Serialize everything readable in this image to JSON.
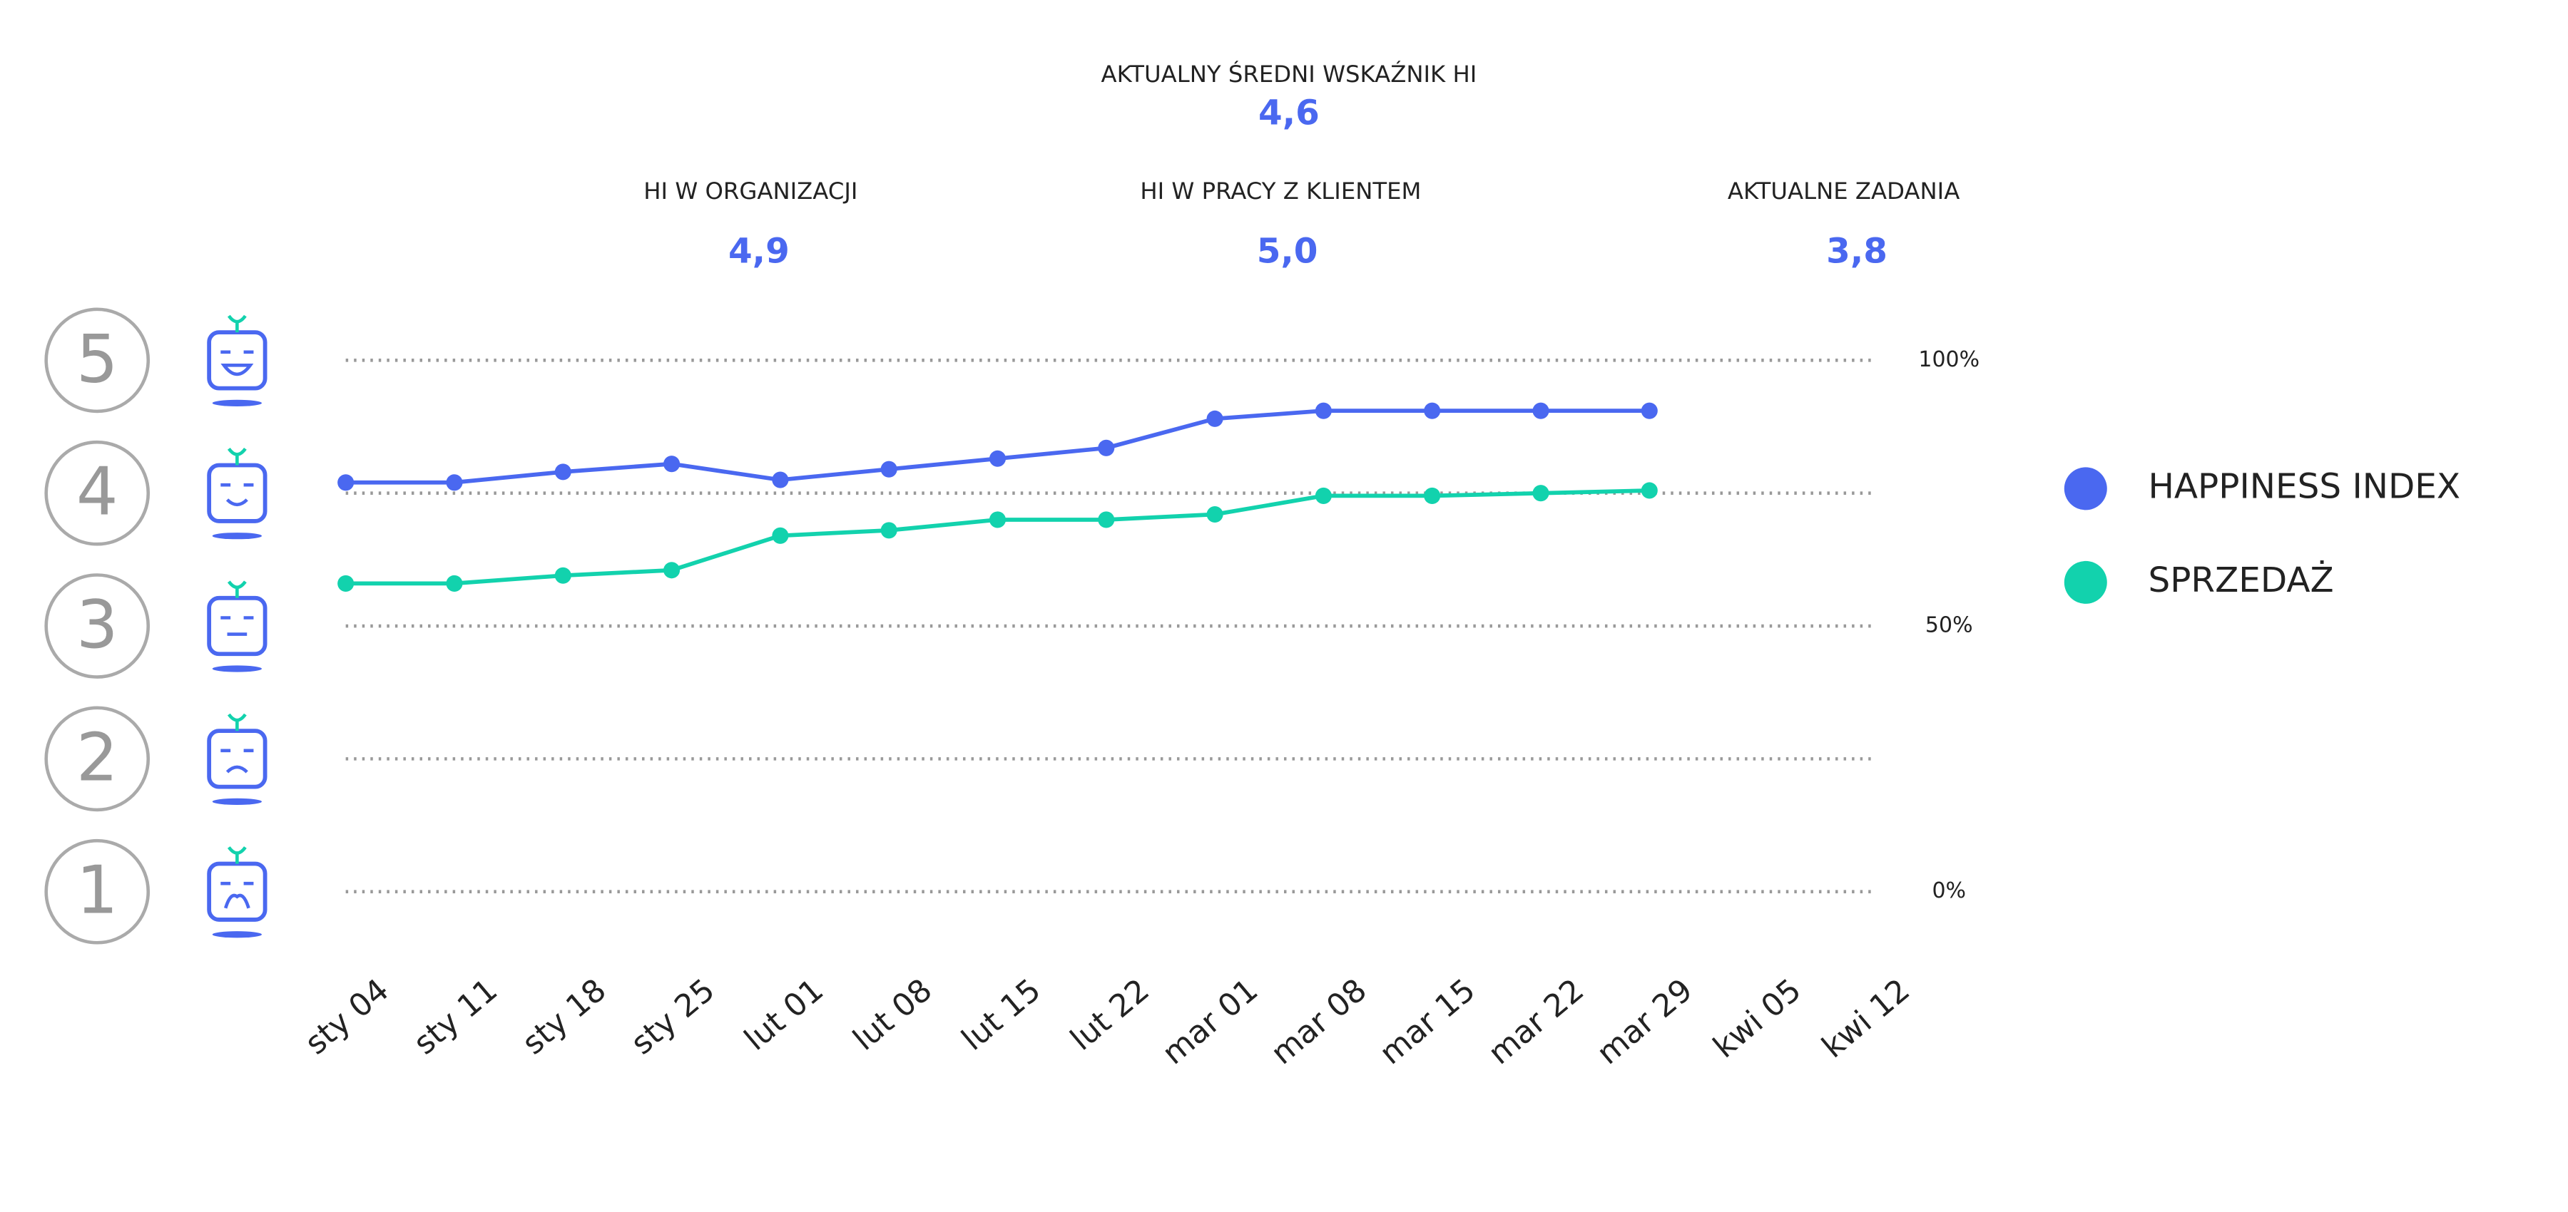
{
  "header": {
    "title": "AKTUALNY ŚREDNI WSKAŹNIK HI",
    "value": "4,6",
    "kpis": [
      {
        "label": "HI W ORGANIZACJI",
        "value": "4,9"
      },
      {
        "label": "HI W PRACY Z KLIENTEM",
        "value": "5,0"
      },
      {
        "label": "AKTUALNE ZADANIA",
        "value": "3,8"
      }
    ]
  },
  "chart_data": {
    "type": "line",
    "categories": [
      "sty 04",
      "sty 11",
      "sty 18",
      "sty 25",
      "lut 01",
      "lut 08",
      "lut 15",
      "lut 22",
      "mar 01",
      "mar 08",
      "mar 15",
      "mar 22",
      "mar 29",
      "kwi 05",
      "kwi 12"
    ],
    "series": [
      {
        "name": "HAPPINESS INDEX",
        "color": "#4a68f0",
        "values": [
          77,
          77,
          79,
          80.5,
          77.5,
          79.5,
          81.5,
          83.5,
          89,
          90.5,
          90.5,
          90.5,
          90.5,
          null,
          null
        ]
      },
      {
        "name": "SPRZEDAŻ",
        "color": "#12d2ad",
        "values": [
          58,
          58,
          59.5,
          60.5,
          67,
          68,
          70,
          70,
          71,
          74.5,
          74.5,
          75,
          75.5,
          null,
          null
        ]
      }
    ],
    "ylim": [
      0,
      100
    ],
    "yticks": [
      {
        "value": 0,
        "label": "0%"
      },
      {
        "value": 50,
        "label": "50%"
      },
      {
        "value": 100,
        "label": "100%"
      }
    ],
    "grid_lines": [
      0,
      25,
      50,
      75,
      100
    ],
    "levels": [
      1,
      2,
      3,
      4,
      5
    ],
    "legend": "right"
  }
}
